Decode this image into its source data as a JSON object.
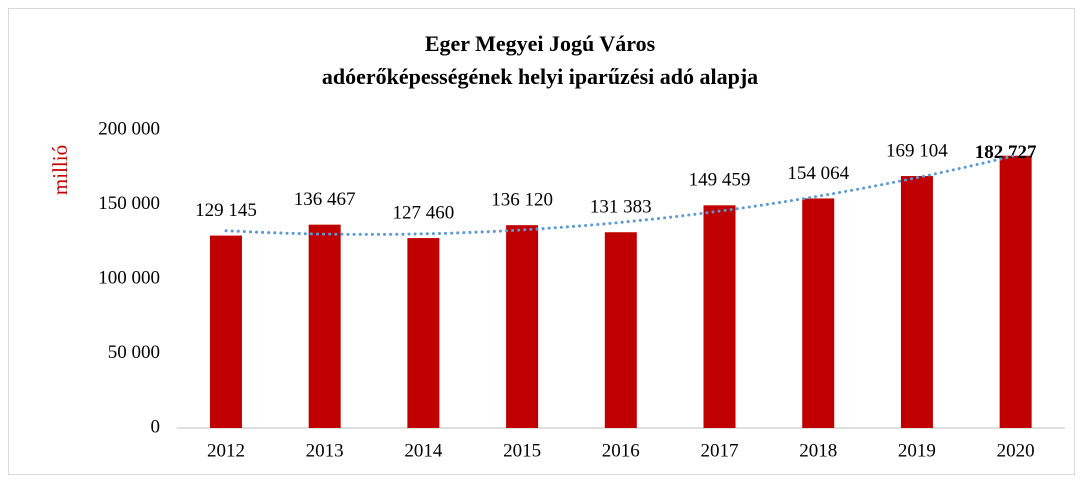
{
  "chart_data": {
    "type": "bar",
    "title": "Eger Megyei Jogú Város",
    "subtitle": "adóerőképességének helyi iparűzési adó alapja",
    "y_label": "millió",
    "categories": [
      "2012",
      "2013",
      "2014",
      "2015",
      "2016",
      "2017",
      "2018",
      "2019",
      "2020"
    ],
    "values": [
      129145,
      136467,
      127460,
      136120,
      131383,
      149459,
      154064,
      169104,
      182727
    ],
    "value_labels": [
      "129 145",
      "136 467",
      "127 460",
      "136 120",
      "131 383",
      "149 459",
      "154 064",
      "169 104",
      "182 727"
    ],
    "color": "#c00000",
    "ylim": [
      0,
      200000
    ],
    "yticks": [
      0,
      {
        "value": 50000,
        "label": "50 000"
      },
      {
        "value": 100000,
        "label": "100 000"
      },
      {
        "value": 150000,
        "label": "150 000"
      },
      {
        "value": 200000,
        "label": "200 000"
      }
    ],
    "grid": false,
    "trendline": {
      "type": "polynomial",
      "order": 2,
      "color": "#5b9bd5"
    }
  }
}
